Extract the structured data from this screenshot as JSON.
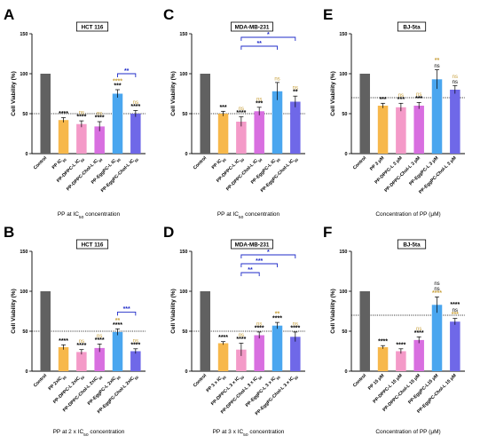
{
  "chart_data": [
    {
      "type": "bar",
      "letter": "A",
      "cell_line": "HCT 116",
      "xlabel_parts": [
        "PP at IC",
        "50",
        " concentration"
      ],
      "ylabel": "Cell Viability (%)",
      "ylim": [
        0,
        150
      ],
      "yticks": [
        0,
        50,
        100,
        150
      ],
      "reference_line": 50,
      "categories": [
        [
          "Control"
        ],
        [
          "PP IC",
          "50"
        ],
        [
          "PP-DPPC-L IC",
          "50"
        ],
        [
          "PP-DPPC-Chol-L IC",
          "50"
        ],
        [
          "PP-EggPC-L IC",
          "50"
        ],
        [
          "PP-EggPC-Chol-L IC",
          "50"
        ]
      ],
      "values": [
        100,
        42,
        37,
        34,
        75,
        50
      ],
      "errors": [
        0,
        3,
        4,
        6,
        5,
        4
      ],
      "colors": [
        "#616161",
        "#f7b84b",
        "#f49ac8",
        "#d86fe0",
        "#4aa6ef",
        "#6f68e8"
      ],
      "annotations": [
        null,
        {
          "text": "****",
          "color": "#000000"
        },
        {
          "text": "ns",
          "color": "#c8a03c",
          "text2": "****",
          "color2": "#000000"
        },
        {
          "text": "ns",
          "color": "#c8a03c",
          "text2": "****",
          "color2": "#000000"
        },
        {
          "text": "****",
          "color": "#c8a03c",
          "text2": "***",
          "color2": "#000000"
        },
        {
          "text": "ns",
          "color": "#c8a03c",
          "text2": "****",
          "color2": "#000000"
        }
      ],
      "brackets": [
        {
          "from": 4,
          "to": 5,
          "text": "**"
        }
      ]
    },
    {
      "type": "bar",
      "letter": "C",
      "cell_line": "MDA-MB-231",
      "xlabel_parts": [
        "PP at IC",
        "50",
        " concentration"
      ],
      "ylabel": "Cell Viability (%)",
      "ylim": [
        0,
        150
      ],
      "yticks": [
        0,
        50,
        100,
        150
      ],
      "reference_line": 50,
      "categories": [
        [
          "Control"
        ],
        [
          "PP IC",
          "50"
        ],
        [
          "PP-DPPC-L IC",
          "50"
        ],
        [
          "PP-DPPC-Chol-L IC",
          "50"
        ],
        [
          "PP-EggPC-L IC",
          "50"
        ],
        [
          "PP-EggPC-Chol-L IC",
          "50"
        ]
      ],
      "values": [
        100,
        50,
        40,
        53,
        78,
        65
      ],
      "errors": [
        0,
        3,
        6,
        5,
        11,
        7
      ],
      "colors": [
        "#616161",
        "#f7b84b",
        "#f49ac8",
        "#d86fe0",
        "#4aa6ef",
        "#6f68e8"
      ],
      "annotations": [
        null,
        {
          "text": "***",
          "color": "#000000"
        },
        {
          "text": "ns",
          "color": "#c8a03c",
          "text2": "****",
          "color2": "#000000"
        },
        {
          "text": "ns",
          "color": "#c8a03c",
          "text2": "***",
          "color2": "#000000"
        },
        {
          "text": "ns",
          "color": "#c8a03c",
          "text2": "",
          "color2": "#000000"
        },
        {
          "text": "ns",
          "color": "#c8a03c",
          "text2": "**",
          "color2": "#000000"
        }
      ],
      "brackets": [
        {
          "from": 2,
          "to": 5,
          "text": "*"
        },
        {
          "from": 2,
          "to": 4,
          "text": "**"
        }
      ]
    },
    {
      "type": "bar",
      "letter": "E",
      "cell_line": "BJ-5ta",
      "xlabel_parts": [
        "Concentration of PP (μM)"
      ],
      "ylabel": "Cell Viability (%)",
      "ylim": [
        0,
        150
      ],
      "yticks": [
        0,
        50,
        100,
        150
      ],
      "reference_line": 70,
      "categories": [
        [
          "Control"
        ],
        [
          "PP 3 μM"
        ],
        [
          "PP-DPPC-L 3 μM"
        ],
        [
          "PP-DPPC-Chol-L 3 μM"
        ],
        [
          "PP-EggPC-L 3 μM"
        ],
        [
          "PP-EggPC-Chol-L 3 μM"
        ]
      ],
      "values": [
        100,
        60,
        58,
        60,
        93,
        80
      ],
      "errors": [
        0,
        3,
        5,
        4,
        12,
        5
      ],
      "colors": [
        "#616161",
        "#f7b84b",
        "#f49ac8",
        "#d86fe0",
        "#4aa6ef",
        "#6f68e8"
      ],
      "annotations": [
        null,
        {
          "text": "***",
          "color": "#000000"
        },
        {
          "text": "ns",
          "color": "#c8a03c",
          "text2": "***",
          "color2": "#000000"
        },
        {
          "text": "ns",
          "color": "#c8a03c",
          "text2": "***",
          "color2": "#000000"
        },
        {
          "text": "**",
          "color": "#c8a03c",
          "text2": "ns",
          "color2": "#000000"
        },
        {
          "text": "ns",
          "color": "#c8a03c",
          "text2": "ns",
          "color2": "#000000"
        }
      ],
      "brackets": []
    },
    {
      "type": "bar",
      "letter": "B",
      "cell_line": "HCT 116",
      "xlabel_parts": [
        "PP at 2 x IC",
        "50",
        " concentration"
      ],
      "ylabel": "Cell Viability (%)",
      "ylim": [
        0,
        150
      ],
      "yticks": [
        0,
        50,
        100,
        150
      ],
      "reference_line": 50,
      "categories": [
        [
          "Control"
        ],
        [
          "PP 2xIC",
          "50"
        ],
        [
          "PP-DPPC-L 2xIC",
          "50"
        ],
        [
          "PP-DPPC-Chol-L 2xIC",
          "50"
        ],
        [
          "PP-EggPC-L 2xIC",
          "50"
        ],
        [
          "PP-EggPC-Chol-L 2xIC",
          "50"
        ]
      ],
      "values": [
        100,
        30,
        24,
        29,
        49,
        25
      ],
      "errors": [
        0,
        3,
        3,
        5,
        4,
        3
      ],
      "colors": [
        "#616161",
        "#f7b84b",
        "#f49ac8",
        "#d86fe0",
        "#4aa6ef",
        "#6f68e8"
      ],
      "annotations": [
        null,
        {
          "text": "****",
          "color": "#000000"
        },
        {
          "text": "ns",
          "color": "#c8a03c",
          "text2": "****",
          "color2": "#000000"
        },
        {
          "text": "ns",
          "color": "#c8a03c",
          "text2": "****",
          "color2": "#000000"
        },
        {
          "text": "**",
          "color": "#c8a03c",
          "text2": "****",
          "color2": "#000000"
        },
        {
          "text": "ns",
          "color": "#c8a03c",
          "text2": "****",
          "color2": "#000000"
        }
      ],
      "brackets": [
        {
          "from": 4,
          "to": 5,
          "text": "***"
        }
      ]
    },
    {
      "type": "bar",
      "letter": "D",
      "cell_line": "MDA-MB-231",
      "xlabel_parts": [
        "PP at 3 x IC",
        "50",
        " concentration"
      ],
      "ylabel": "Cell Viability (%)",
      "ylim": [
        0,
        150
      ],
      "yticks": [
        0,
        50,
        100,
        150
      ],
      "reference_line": 50,
      "categories": [
        [
          "Control"
        ],
        [
          "PP 3 x IC",
          "50"
        ],
        [
          "PP-DPPC-L 3 x IC",
          "50"
        ],
        [
          "PP-DPPC-Chol-L 3 x IC",
          "50"
        ],
        [
          "PP-EggPC-L 3 x IC",
          "50"
        ],
        [
          "PP-EggPC-Chol-L 3 x IC",
          "50"
        ]
      ],
      "values": [
        100,
        35,
        27,
        45,
        57,
        43
      ],
      "errors": [
        0,
        2,
        8,
        4,
        4,
        6
      ],
      "colors": [
        "#616161",
        "#f7b84b",
        "#f49ac8",
        "#d86fe0",
        "#4aa6ef",
        "#6f68e8"
      ],
      "annotations": [
        null,
        {
          "text": "****",
          "color": "#000000"
        },
        {
          "text": "ns",
          "color": "#c8a03c",
          "text2": "****",
          "color2": "#000000"
        },
        {
          "text": "ns",
          "color": "#c8a03c",
          "text2": "****",
          "color2": "#000000"
        },
        {
          "text": "**",
          "color": "#c8a03c",
          "text2": "****",
          "color2": "#000000"
        },
        {
          "text": "ns",
          "color": "#c8a03c",
          "text2": "****",
          "color2": "#000000"
        }
      ],
      "brackets": [
        {
          "from": 2,
          "to": 5,
          "text": "*"
        },
        {
          "from": 2,
          "to": 4,
          "text": "***"
        },
        {
          "from": 2,
          "to": 3,
          "text": "**"
        }
      ]
    },
    {
      "type": "bar",
      "letter": "F",
      "cell_line": "BJ-5ta",
      "xlabel_parts": [
        "Concentration of PP (μM)"
      ],
      "ylabel": "Cell Viability (%)",
      "ylim": [
        0,
        150
      ],
      "yticks": [
        0,
        50,
        100,
        150
      ],
      "reference_line": 70,
      "categories": [
        [
          "Control"
        ],
        [
          "PP 15 μM"
        ],
        [
          "PP-DPPC-L 15 μM"
        ],
        [
          "PP-DPPC-Chol-L 15 μM"
        ],
        [
          "PP-EggPC-L15 μM"
        ],
        [
          "PP-EggPC-Chol-L 15 μM"
        ]
      ],
      "values": [
        100,
        30,
        25,
        39,
        83,
        62
      ],
      "errors": [
        0,
        2,
        3,
        4,
        10,
        4
      ],
      "colors": [
        "#616161",
        "#f7b84b",
        "#f49ac8",
        "#d86fe0",
        "#4aa6ef",
        "#6f68e8"
      ],
      "annotations": [
        null,
        {
          "text": "****",
          "color": "#000000"
        },
        {
          "text": "****",
          "color": "#000000"
        },
        {
          "text": "ns",
          "color": "#c8a03c",
          "text2": "****",
          "color2": "#000000"
        },
        {
          "text": "****",
          "color": "#c8a03c",
          "text2": "ns",
          "color2": "#000000",
          "text3": "ns",
          "color3": "#000000"
        },
        {
          "text": "***",
          "color": "#c8a03c",
          "text2": "ns",
          "color2": "#000000",
          "text3": "****",
          "color3": "#000000"
        }
      ],
      "brackets": []
    }
  ]
}
